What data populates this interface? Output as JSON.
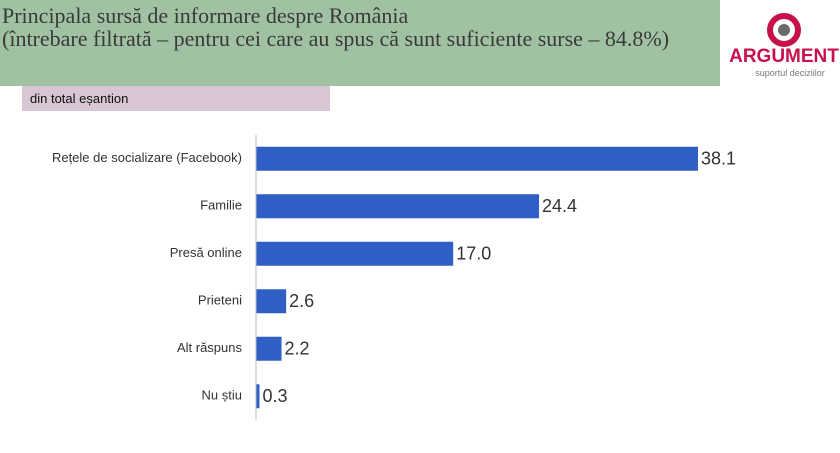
{
  "chart_data": {
    "type": "hbar",
    "title": "Principala sursă de informare despre România",
    "subtitle": "(întrebare filtrată – pentru cei care au spus că sunt suficiente surse – 84.8%)",
    "note": "din total eșantion",
    "categories": [
      "Rețele de socializare (Facebook)",
      "Familie",
      "Presă online",
      "Prieteni",
      "Alt răspuns",
      "Nu știu"
    ],
    "values": [
      38.1,
      24.4,
      17.0,
      2.6,
      2.2,
      0.3
    ],
    "value_labels": [
      "38.1",
      "24.4",
      "17.0",
      "2.6",
      "2.2",
      "0.3"
    ],
    "color": "#2f5fc4",
    "xlim": [
      0,
      40
    ]
  },
  "logo": {
    "name": "ARGUMENT",
    "tagline": "suportul deciziilor"
  }
}
